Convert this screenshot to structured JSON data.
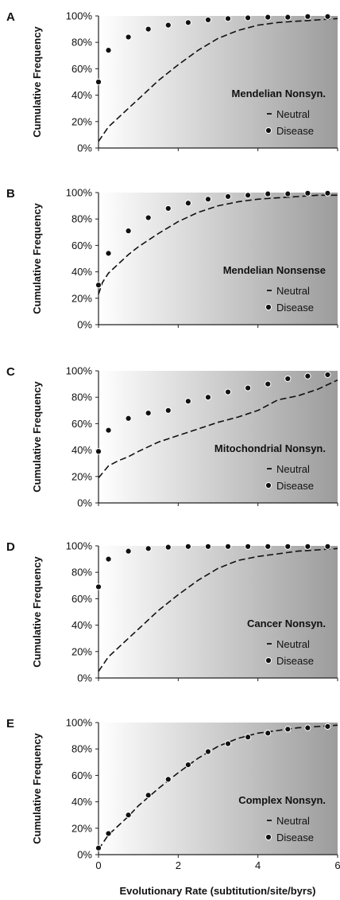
{
  "figure": {
    "xlabel": "Evolutionary Rate (subtitution/site/byrs)",
    "x_ticks": [
      "0",
      "2",
      "4",
      "6"
    ],
    "y_ticks": [
      "0%",
      "20%",
      "40%",
      "60%",
      "80%",
      "100%"
    ]
  },
  "chart_data": [
    {
      "type": "line",
      "panel": "A",
      "title": "Mendelian Nonsyn.",
      "ylabel": "Cumulative Frequency",
      "xlim": [
        0,
        6
      ],
      "ylim": [
        0,
        100
      ],
      "background": "horizontal gradient white to gray",
      "legend": [
        "Neutral",
        "Disease"
      ],
      "legend_position": "bottom-right",
      "series": [
        {
          "name": "Neutral",
          "style": "dashed",
          "x": [
            0,
            0.25,
            0.5,
            0.75,
            1,
            1.5,
            2,
            2.5,
            3,
            3.5,
            4,
            4.5,
            5,
            5.5,
            6
          ],
          "values": [
            5,
            16,
            23,
            30,
            37,
            51,
            63,
            74,
            83,
            89,
            93,
            95,
            96,
            97,
            98
          ]
        },
        {
          "name": "Disease",
          "style": "markers",
          "x": [
            0,
            0.25,
            0.75,
            1.25,
            1.75,
            2.25,
            2.75,
            3.25,
            3.75,
            4.25,
            4.75,
            5.25,
            5.75
          ],
          "values": [
            50,
            74,
            84,
            90,
            93,
            95,
            97,
            98,
            98.5,
            99,
            99,
            99.5,
            99.5
          ]
        }
      ]
    },
    {
      "type": "line",
      "panel": "B",
      "title": "Mendelian Nonsense",
      "ylabel": "Cumulative Frequency",
      "xlim": [
        0,
        6
      ],
      "ylim": [
        0,
        100
      ],
      "background": "horizontal gradient white to gray",
      "legend": [
        "Neutral",
        "Disease"
      ],
      "legend_position": "bottom-right",
      "series": [
        {
          "name": "Neutral",
          "style": "dashed",
          "x": [
            0,
            0.1,
            0.25,
            0.5,
            0.75,
            1,
            1.5,
            2,
            2.5,
            3,
            3.5,
            4,
            4.5,
            5,
            5.5,
            6
          ],
          "values": [
            23,
            32,
            39,
            46,
            53,
            59,
            69,
            78,
            85,
            90,
            93,
            95,
            96,
            97,
            98,
            98
          ]
        },
        {
          "name": "Disease",
          "style": "markers",
          "x": [
            0,
            0.25,
            0.75,
            1.25,
            1.75,
            2.25,
            2.75,
            3.25,
            3.75,
            4.25,
            4.75,
            5.25,
            5.75
          ],
          "values": [
            30,
            54,
            71,
            81,
            88,
            92,
            95,
            97,
            98,
            99,
            99,
            99.5,
            99.5
          ]
        }
      ]
    },
    {
      "type": "line",
      "panel": "C",
      "title": "Mitochondrial Nonsyn.",
      "ylabel": "Cumulative Frequency",
      "xlim": [
        0,
        6
      ],
      "ylim": [
        0,
        100
      ],
      "background": "horizontal gradient white to gray",
      "legend": [
        "Neutral",
        "Disease"
      ],
      "legend_position": "bottom-right",
      "series": [
        {
          "name": "Neutral",
          "style": "dashed",
          "x": [
            0,
            0.25,
            0.5,
            0.75,
            1,
            1.5,
            2,
            2.5,
            3,
            3.5,
            4,
            4.5,
            5,
            5.5,
            6
          ],
          "values": [
            19,
            28,
            32,
            35,
            39,
            46,
            51,
            56,
            61,
            65,
            70,
            78,
            81,
            86,
            93
          ]
        },
        {
          "name": "Disease",
          "style": "markers",
          "x": [
            0,
            0.25,
            0.75,
            1.25,
            1.75,
            2.25,
            2.75,
            3.25,
            3.75,
            4.25,
            4.75,
            5.25,
            5.75
          ],
          "values": [
            39,
            55,
            64,
            68,
            70,
            77,
            80,
            84,
            87,
            90,
            94,
            96,
            97
          ]
        }
      ]
    },
    {
      "type": "line",
      "panel": "D",
      "title": "Cancer Nonsyn.",
      "ylabel": "Cumulative Frequency",
      "xlim": [
        0,
        6
      ],
      "ylim": [
        0,
        100
      ],
      "background": "horizontal gradient white to gray",
      "legend": [
        "Neutral",
        "Disease"
      ],
      "legend_position": "bottom-right",
      "series": [
        {
          "name": "Neutral",
          "style": "dashed",
          "x": [
            0,
            0.25,
            0.5,
            0.75,
            1,
            1.5,
            2,
            2.5,
            3,
            3.5,
            4,
            4.5,
            5,
            5.5,
            6
          ],
          "values": [
            5,
            16,
            23,
            30,
            37,
            51,
            63,
            74,
            83,
            89,
            92,
            94,
            96,
            97,
            98
          ]
        },
        {
          "name": "Disease",
          "style": "markers",
          "x": [
            0,
            0.25,
            0.75,
            1.25,
            1.75,
            2.25,
            2.75,
            3.25,
            3.75,
            4.25,
            4.75,
            5.25,
            5.75
          ],
          "values": [
            69,
            90,
            96,
            98,
            99,
            99.5,
            99.5,
            99.5,
            99.5,
            99.5,
            99.5,
            99.5,
            99.5
          ]
        }
      ]
    },
    {
      "type": "line",
      "panel": "E",
      "title": "Complex Nonsyn.",
      "ylabel": "Cumulative Frequency",
      "xlim": [
        0,
        6
      ],
      "ylim": [
        0,
        100
      ],
      "background": "horizontal gradient white to gray",
      "legend": [
        "Neutral",
        "Disease"
      ],
      "legend_position": "bottom-right",
      "series": [
        {
          "name": "Neutral",
          "style": "dashed",
          "x": [
            0,
            0.25,
            0.5,
            0.75,
            1,
            1.5,
            2,
            2.5,
            3,
            3.5,
            4,
            4.5,
            5,
            5.5,
            6
          ],
          "values": [
            4,
            15,
            22,
            29,
            37,
            50,
            62,
            73,
            82,
            88,
            92,
            94,
            96,
            97,
            98
          ]
        },
        {
          "name": "Disease",
          "style": "markers",
          "x": [
            0,
            0.25,
            0.75,
            1.25,
            1.75,
            2.25,
            2.75,
            3.25,
            3.75,
            4.25,
            4.75,
            5.25,
            5.75
          ],
          "values": [
            5,
            16,
            30,
            45,
            57,
            68,
            78,
            84,
            89,
            92,
            95,
            96,
            97
          ]
        }
      ]
    }
  ]
}
